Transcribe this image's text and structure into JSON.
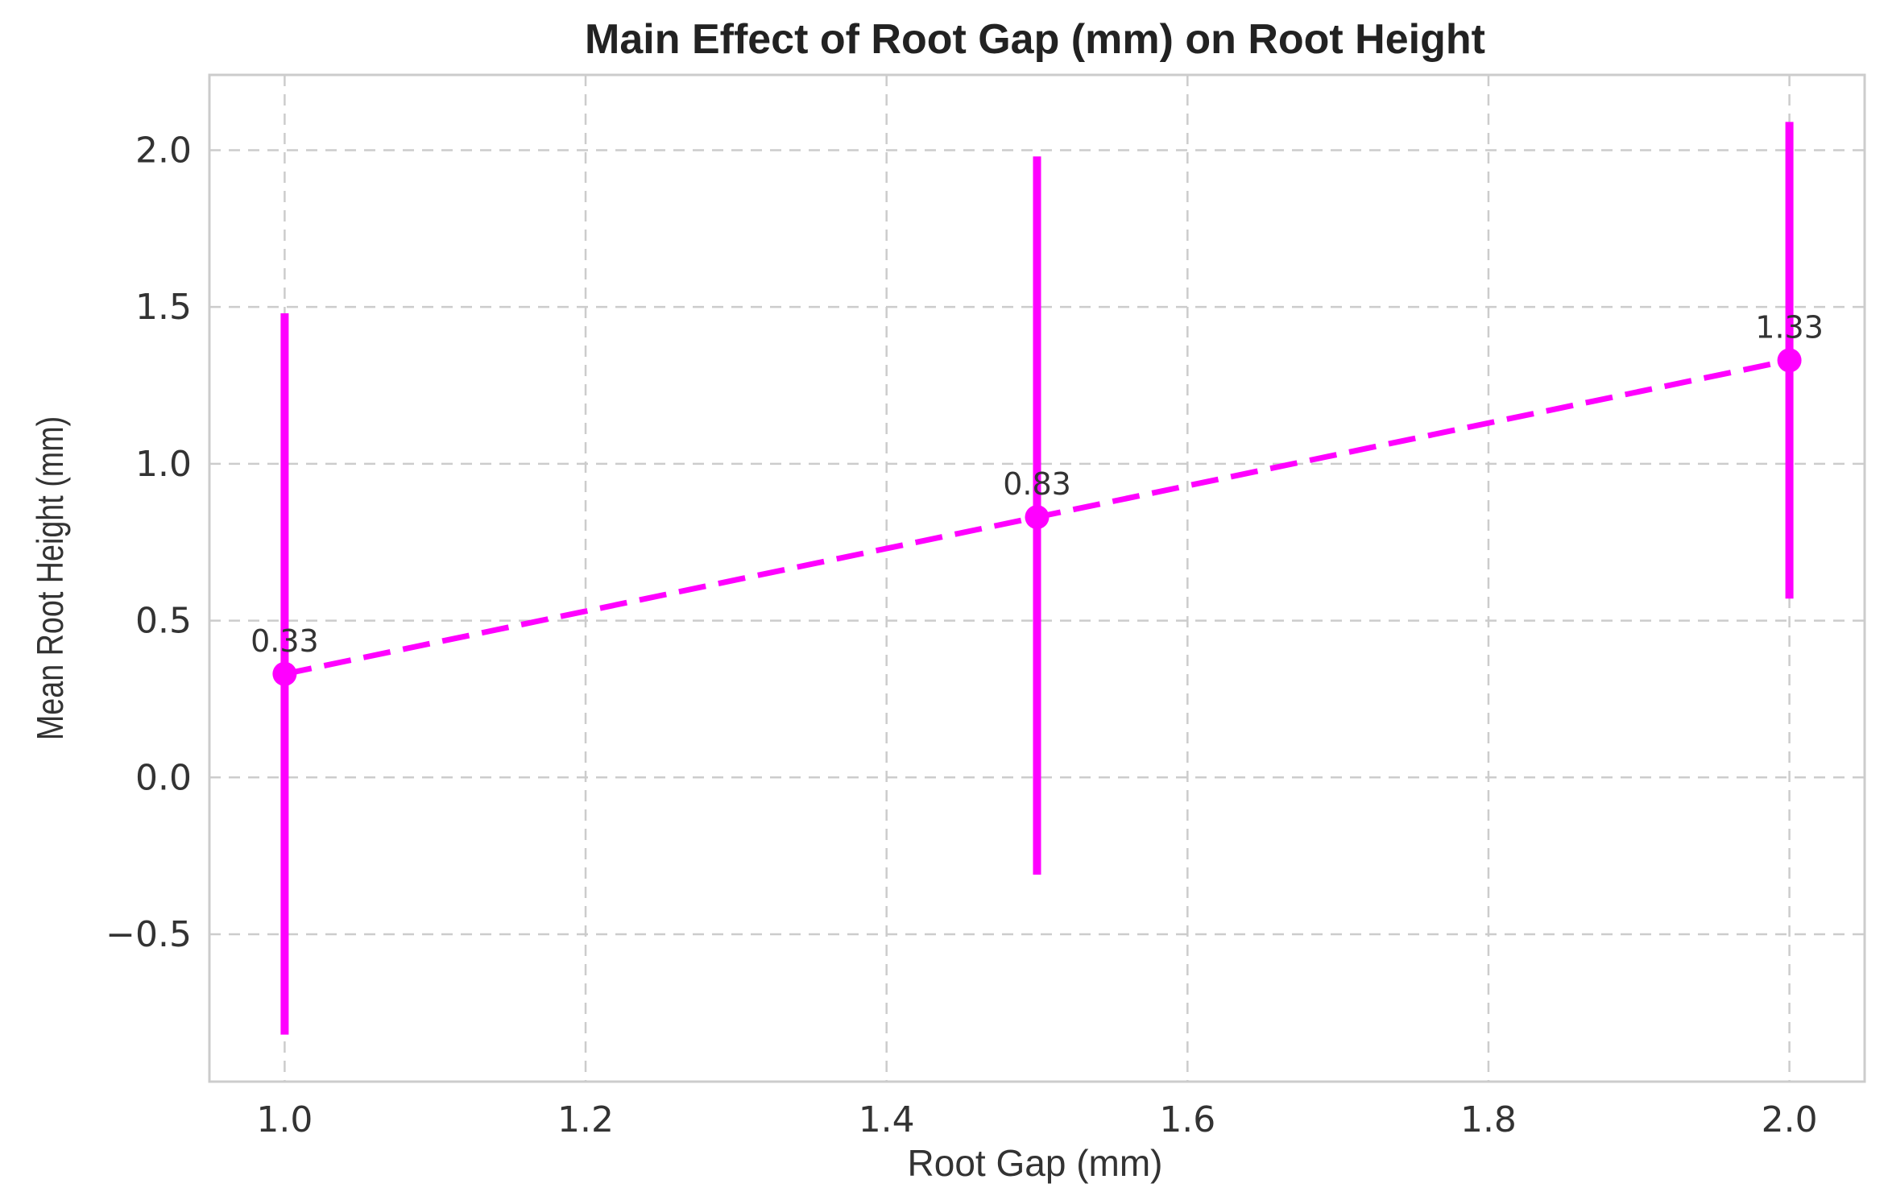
{
  "chart_data": {
    "type": "line",
    "title": "Main Effect of Root Gap (mm) on Root Height",
    "xlabel": "Root Gap (mm)",
    "ylabel": "Mean Root Height (mm)",
    "xlim": [
      0.95,
      2.05
    ],
    "ylim": [
      -0.97,
      2.24
    ],
    "x_ticks": [
      1.0,
      1.2,
      1.4,
      1.6,
      1.8,
      2.0
    ],
    "x_tick_labels": [
      "1.0",
      "1.2",
      "1.4",
      "1.6",
      "1.8",
      "2.0"
    ],
    "y_ticks": [
      -0.5,
      0.0,
      0.5,
      1.0,
      1.5,
      2.0
    ],
    "y_tick_labels": [
      "−0.5",
      "0.0",
      "0.5",
      "1.0",
      "1.5",
      "2.0"
    ],
    "grid": true,
    "color": "#ff00ff",
    "line_style": "dashed",
    "series": [
      {
        "x": [
          1.0,
          1.5,
          2.0
        ],
        "values": [
          0.33,
          0.83,
          1.33
        ],
        "labels": [
          "0.33",
          "0.83",
          "1.33"
        ],
        "error_low": [
          -0.82,
          -0.31,
          0.57
        ],
        "error_high": [
          1.48,
          1.98,
          2.09
        ]
      }
    ]
  }
}
